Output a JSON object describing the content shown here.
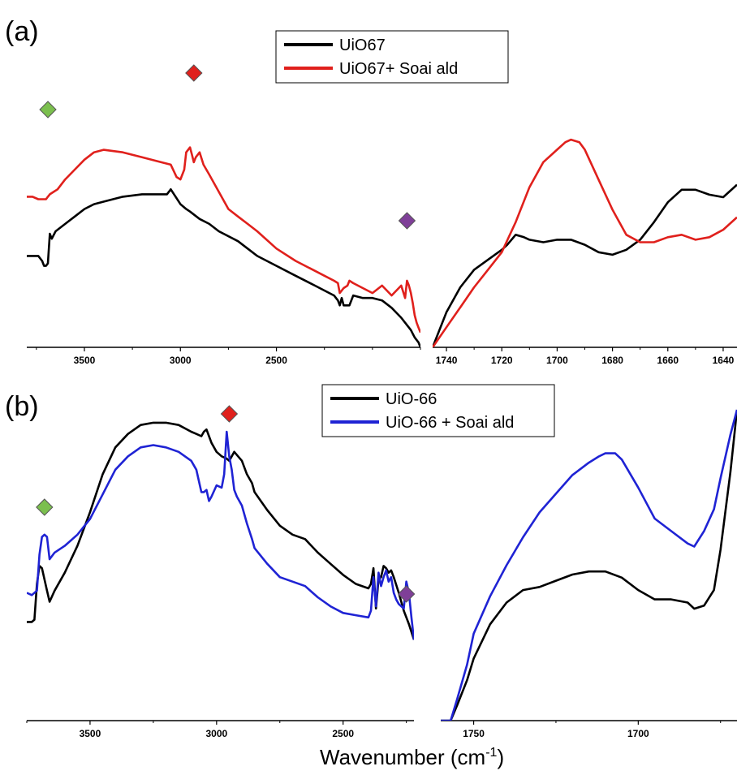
{
  "figure": {
    "xlabel": "Wavenumber (cm-1)",
    "xlabel_main": "Wavenumber (cm",
    "xlabel_sup": "-1",
    "xlabel_close": ")"
  },
  "chart_data": [
    {
      "panel": "(a)",
      "type": "line",
      "subplot": "left",
      "xlabel": "",
      "ylabel": "",
      "xlim": [
        3800,
        1750
      ],
      "ylim": [
        0,
        1
      ],
      "xticks": [
        3500,
        3000,
        2500
      ],
      "tick_labels": [
        "3500",
        "3000",
        "2500"
      ],
      "grid": false,
      "legend": {
        "placement": "top-center",
        "entries": [
          "UiO67",
          "UiO67+ Soai ald"
        ]
      },
      "markers": [
        {
          "symbol": "diamond",
          "color": "#7bbf4e",
          "x": 3690
        },
        {
          "symbol": "diamond",
          "color": "#e0201c",
          "x": 2930
        },
        {
          "symbol": "diamond",
          "color": "#7f3f98",
          "x": 1820
        }
      ],
      "series": [
        {
          "name": "UiO67",
          "color": "#000000",
          "x": [
            3800,
            3760,
            3740,
            3720,
            3710,
            3700,
            3690,
            3680,
            3670,
            3650,
            3600,
            3550,
            3500,
            3450,
            3400,
            3300,
            3200,
            3100,
            3070,
            3050,
            3000,
            2970,
            2950,
            2900,
            2850,
            2800,
            2700,
            2650,
            2600,
            2500,
            2400,
            2300,
            2250,
            2200,
            2180,
            2170,
            2160,
            2150,
            2120,
            2100,
            2050,
            2000,
            1950,
            1900,
            1850,
            1820,
            1800,
            1780,
            1760,
            1750
          ],
          "y": [
            0.37,
            0.37,
            0.37,
            0.35,
            0.33,
            0.33,
            0.34,
            0.46,
            0.44,
            0.47,
            0.5,
            0.53,
            0.56,
            0.58,
            0.59,
            0.61,
            0.62,
            0.62,
            0.62,
            0.64,
            0.58,
            0.56,
            0.55,
            0.52,
            0.5,
            0.47,
            0.43,
            0.4,
            0.37,
            0.33,
            0.29,
            0.25,
            0.23,
            0.21,
            0.19,
            0.17,
            0.2,
            0.17,
            0.17,
            0.21,
            0.2,
            0.2,
            0.19,
            0.16,
            0.12,
            0.09,
            0.07,
            0.04,
            0.02,
            0.0
          ]
        },
        {
          "name": "UiO67+ Soai ald",
          "color": "#e0201c",
          "x": [
            3800,
            3770,
            3740,
            3720,
            3700,
            3690,
            3680,
            3660,
            3640,
            3600,
            3550,
            3500,
            3450,
            3400,
            3300,
            3200,
            3100,
            3050,
            3020,
            3000,
            2980,
            2970,
            2950,
            2940,
            2930,
            2920,
            2900,
            2880,
            2850,
            2800,
            2750,
            2700,
            2650,
            2600,
            2500,
            2400,
            2300,
            2250,
            2200,
            2180,
            2170,
            2150,
            2130,
            2120,
            2100,
            2050,
            2000,
            1950,
            1900,
            1850,
            1830,
            1820,
            1810,
            1800,
            1790,
            1780,
            1770,
            1760,
            1750
          ],
          "y": [
            0.61,
            0.61,
            0.6,
            0.6,
            0.6,
            0.61,
            0.62,
            0.63,
            0.64,
            0.68,
            0.72,
            0.76,
            0.79,
            0.8,
            0.79,
            0.77,
            0.75,
            0.74,
            0.69,
            0.68,
            0.72,
            0.79,
            0.81,
            0.78,
            0.75,
            0.77,
            0.79,
            0.74,
            0.7,
            0.63,
            0.56,
            0.53,
            0.5,
            0.47,
            0.4,
            0.35,
            0.31,
            0.29,
            0.27,
            0.26,
            0.22,
            0.24,
            0.25,
            0.27,
            0.26,
            0.24,
            0.22,
            0.25,
            0.21,
            0.25,
            0.2,
            0.27,
            0.25,
            0.22,
            0.18,
            0.13,
            0.1,
            0.08,
            0.06
          ]
        }
      ]
    },
    {
      "panel": "(a)",
      "type": "line",
      "subplot": "right",
      "xlabel": "",
      "ylabel": "",
      "xlim": [
        1745,
        1635
      ],
      "ylim": [
        0,
        1
      ],
      "xticks": [
        1740,
        1720,
        1700,
        1680,
        1660,
        1640
      ],
      "tick_labels": [
        "1740",
        "1720",
        "1700",
        "1680",
        "1660",
        "1640"
      ],
      "grid": false,
      "series": [
        {
          "name": "UiO67",
          "color": "#000000",
          "x": [
            1745,
            1740,
            1735,
            1730,
            1725,
            1720,
            1718,
            1715,
            1712,
            1710,
            1705,
            1700,
            1695,
            1690,
            1685,
            1680,
            1675,
            1670,
            1665,
            1660,
            1655,
            1650,
            1645,
            1640,
            1635
          ],
          "y": [
            0.0,
            0.14,
            0.24,
            0.31,
            0.35,
            0.39,
            0.41,
            0.45,
            0.44,
            0.43,
            0.42,
            0.43,
            0.43,
            0.41,
            0.38,
            0.37,
            0.39,
            0.43,
            0.5,
            0.58,
            0.63,
            0.63,
            0.61,
            0.6,
            0.65
          ]
        },
        {
          "name": "UiO67+ Soai ald",
          "color": "#e0201c",
          "x": [
            1745,
            1740,
            1735,
            1730,
            1725,
            1720,
            1715,
            1710,
            1705,
            1700,
            1697,
            1695,
            1692,
            1690,
            1685,
            1680,
            1675,
            1670,
            1665,
            1660,
            1655,
            1650,
            1645,
            1640,
            1635
          ],
          "y": [
            0.0,
            0.08,
            0.16,
            0.24,
            0.31,
            0.38,
            0.5,
            0.64,
            0.74,
            0.79,
            0.82,
            0.83,
            0.82,
            0.79,
            0.67,
            0.55,
            0.45,
            0.42,
            0.42,
            0.44,
            0.45,
            0.43,
            0.44,
            0.47,
            0.52
          ]
        }
      ]
    },
    {
      "panel": "(b)",
      "type": "line",
      "subplot": "left",
      "xlabel": "",
      "ylabel": "",
      "xlim": [
        3750,
        2220
      ],
      "ylim": [
        0,
        1
      ],
      "xticks": [
        3500,
        3000,
        2500
      ],
      "tick_labels": [
        "3500",
        "3000",
        "2500"
      ],
      "grid": false,
      "legend": {
        "placement": "top-center",
        "entries": [
          "UiO-66",
          "UiO-66 + Soai ald"
        ]
      },
      "markers": [
        {
          "symbol": "diamond",
          "color": "#7bbf4e",
          "x": 3680
        },
        {
          "symbol": "diamond",
          "color": "#e0201c",
          "x": 2950
        },
        {
          "symbol": "diamond",
          "color": "#7f3f98",
          "x": 2250
        }
      ],
      "series": [
        {
          "name": "UiO-66",
          "color": "#000000",
          "x": [
            3750,
            3730,
            3720,
            3710,
            3700,
            3690,
            3680,
            3670,
            3660,
            3640,
            3600,
            3550,
            3500,
            3450,
            3400,
            3350,
            3300,
            3250,
            3200,
            3150,
            3100,
            3080,
            3060,
            3050,
            3040,
            3030,
            3020,
            3000,
            2980,
            2960,
            2950,
            2930,
            2900,
            2880,
            2860,
            2850,
            2800,
            2750,
            2700,
            2650,
            2600,
            2550,
            2500,
            2450,
            2400,
            2390,
            2380,
            2370,
            2360,
            2350,
            2340,
            2330,
            2320,
            2310,
            2300,
            2280,
            2260,
            2240,
            2220
          ],
          "y": [
            0.08,
            0.08,
            0.09,
            0.25,
            0.33,
            0.32,
            0.27,
            0.22,
            0.17,
            0.22,
            0.3,
            0.42,
            0.57,
            0.74,
            0.86,
            0.92,
            0.96,
            0.97,
            0.97,
            0.96,
            0.93,
            0.92,
            0.91,
            0.93,
            0.94,
            0.91,
            0.88,
            0.84,
            0.82,
            0.81,
            0.8,
            0.84,
            0.8,
            0.74,
            0.7,
            0.66,
            0.58,
            0.51,
            0.47,
            0.45,
            0.39,
            0.34,
            0.29,
            0.25,
            0.23,
            0.25,
            0.32,
            0.14,
            0.27,
            0.28,
            0.33,
            0.32,
            0.3,
            0.31,
            0.28,
            0.21,
            0.13,
            0.07,
            0.0
          ]
        },
        {
          "name": "UiO-66 + Soai ald",
          "color": "#1f23d4",
          "x": [
            3750,
            3730,
            3710,
            3700,
            3690,
            3680,
            3670,
            3660,
            3640,
            3600,
            3550,
            3500,
            3450,
            3400,
            3350,
            3300,
            3250,
            3200,
            3150,
            3100,
            3080,
            3060,
            3050,
            3040,
            3030,
            3020,
            3000,
            2980,
            2970,
            2960,
            2950,
            2940,
            2930,
            2920,
            2900,
            2880,
            2860,
            2850,
            2800,
            2750,
            2700,
            2650,
            2600,
            2550,
            2500,
            2450,
            2400,
            2390,
            2380,
            2370,
            2360,
            2350,
            2340,
            2330,
            2320,
            2310,
            2300,
            2290,
            2280,
            2270,
            2260,
            2250,
            2240,
            2230,
            2220
          ],
          "y": [
            0.21,
            0.2,
            0.22,
            0.38,
            0.46,
            0.47,
            0.46,
            0.36,
            0.39,
            0.42,
            0.47,
            0.54,
            0.65,
            0.76,
            0.82,
            0.86,
            0.87,
            0.86,
            0.84,
            0.8,
            0.76,
            0.66,
            0.66,
            0.67,
            0.62,
            0.64,
            0.69,
            0.68,
            0.74,
            0.93,
            0.82,
            0.76,
            0.67,
            0.64,
            0.6,
            0.52,
            0.45,
            0.41,
            0.34,
            0.28,
            0.26,
            0.24,
            0.19,
            0.15,
            0.12,
            0.11,
            0.1,
            0.13,
            0.28,
            0.15,
            0.3,
            0.24,
            0.28,
            0.31,
            0.26,
            0.28,
            0.21,
            0.18,
            0.16,
            0.15,
            0.14,
            0.26,
            0.21,
            0.1,
            0.0
          ]
        }
      ]
    },
    {
      "panel": "(b)",
      "type": "line",
      "subplot": "right",
      "xlabel": "",
      "ylabel": "",
      "xlim": [
        1760,
        1670
      ],
      "ylim": [
        0,
        1
      ],
      "xticks": [
        1750,
        1700
      ],
      "tick_labels": [
        "1750",
        "1700"
      ],
      "grid": false,
      "series": [
        {
          "name": "UiO-66",
          "color": "#000000",
          "x": [
            1760,
            1757,
            1755,
            1752,
            1750,
            1745,
            1740,
            1735,
            1730,
            1725,
            1720,
            1715,
            1710,
            1705,
            1700,
            1695,
            1690,
            1685,
            1683,
            1680,
            1677,
            1675,
            1672,
            1670
          ],
          "y": [
            0.0,
            0.0,
            0.05,
            0.13,
            0.2,
            0.31,
            0.38,
            0.42,
            0.43,
            0.45,
            0.47,
            0.48,
            0.48,
            0.46,
            0.42,
            0.39,
            0.39,
            0.38,
            0.36,
            0.37,
            0.42,
            0.55,
            0.8,
            1.0
          ]
        },
        {
          "name": "UiO-66 + Soai ald",
          "color": "#1f23d4",
          "x": [
            1760,
            1757,
            1755,
            1752,
            1750,
            1745,
            1740,
            1735,
            1730,
            1725,
            1720,
            1715,
            1712,
            1710,
            1707,
            1705,
            1700,
            1695,
            1690,
            1685,
            1683,
            1680,
            1677,
            1675,
            1672,
            1670
          ],
          "y": [
            0.0,
            0.0,
            0.07,
            0.18,
            0.28,
            0.4,
            0.5,
            0.59,
            0.67,
            0.73,
            0.79,
            0.83,
            0.85,
            0.86,
            0.86,
            0.84,
            0.75,
            0.65,
            0.61,
            0.57,
            0.56,
            0.61,
            0.68,
            0.78,
            0.92,
            1.0
          ]
        }
      ]
    }
  ]
}
